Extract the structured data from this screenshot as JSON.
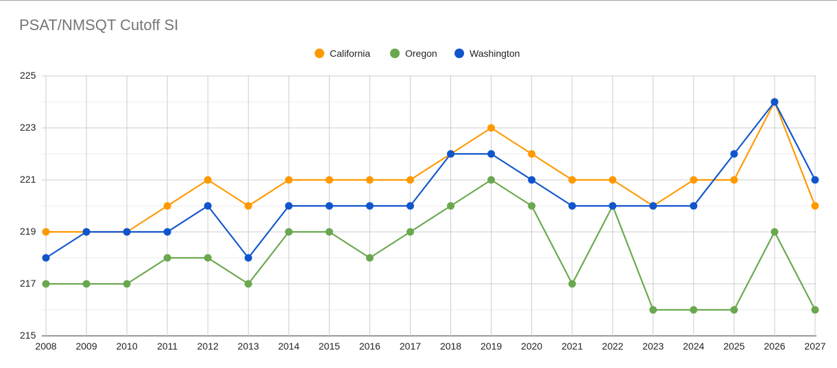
{
  "chart_data": {
    "type": "line",
    "title": "PSAT/NMSQT Cutoff SI",
    "xlabel": "",
    "ylabel": "",
    "x": [
      "2008",
      "2009",
      "2010",
      "2011",
      "2012",
      "2013",
      "2014",
      "2015",
      "2016",
      "2017",
      "2018",
      "2019",
      "2020",
      "2021",
      "2022",
      "2023",
      "2024",
      "2025",
      "2026",
      "2027"
    ],
    "ylim": [
      215,
      225
    ],
    "yticks": [
      "215",
      "217",
      "219",
      "221",
      "223",
      "225"
    ],
    "grid": true,
    "legend": "top-center",
    "series": [
      {
        "name": "California",
        "color": "#ff9900",
        "values": [
          219,
          219,
          219,
          220,
          221,
          220,
          221,
          221,
          221,
          221,
          222,
          223,
          222,
          221,
          221,
          220,
          221,
          221,
          224,
          220
        ]
      },
      {
        "name": "Oregon",
        "color": "#6aa84f",
        "values": [
          217,
          217,
          217,
          218,
          218,
          217,
          219,
          219,
          218,
          219,
          220,
          221,
          220,
          217,
          220,
          216,
          216,
          216,
          219,
          216
        ]
      },
      {
        "name": "Washington",
        "color": "#1155cc",
        "values": [
          218,
          219,
          219,
          219,
          220,
          218,
          220,
          220,
          220,
          220,
          222,
          222,
          221,
          220,
          220,
          220,
          220,
          222,
          224,
          221
        ]
      }
    ]
  }
}
